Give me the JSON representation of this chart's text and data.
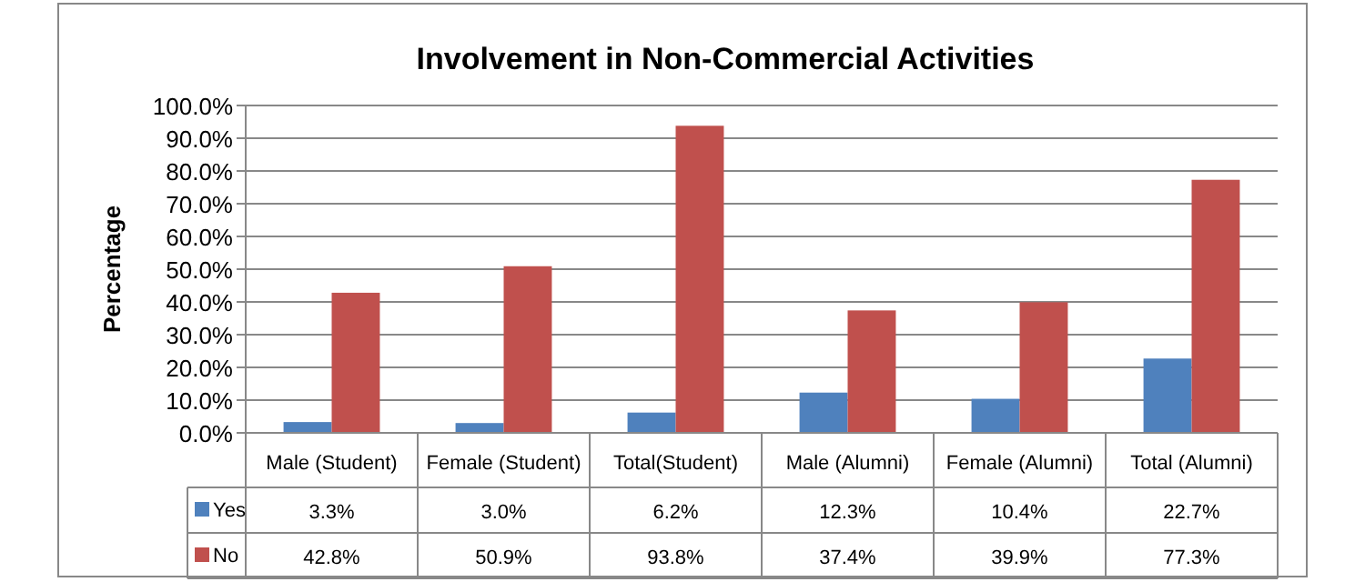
{
  "chart_data": {
    "type": "bar",
    "title": "Involvement in Non-Commercial Activities",
    "ylabel": "Percentage",
    "categories": [
      "Male (Student)",
      "Female (Student)",
      "Total(Student)",
      "Male (Alumni)",
      "Female (Alumni)",
      "Total (Alumni)"
    ],
    "series": [
      {
        "name": "Yes",
        "color": "#4f81bd",
        "values": [
          3.3,
          3.0,
          6.2,
          12.3,
          10.4,
          22.7
        ]
      },
      {
        "name": "No",
        "color": "#c0504d",
        "values": [
          42.8,
          50.9,
          93.8,
          37.4,
          39.9,
          77.3
        ]
      }
    ],
    "ylim": [
      0,
      100
    ],
    "yticks": [
      {
        "value": 0,
        "label": "0.0%"
      },
      {
        "value": 10,
        "label": "10.0%"
      },
      {
        "value": 20,
        "label": "20.0%"
      },
      {
        "value": 30,
        "label": "30.0%"
      },
      {
        "value": 40,
        "label": "40.0%"
      },
      {
        "value": 50,
        "label": "50.0%"
      },
      {
        "value": 60,
        "label": "60.0%"
      },
      {
        "value": 70,
        "label": "70.0%"
      },
      {
        "value": 80,
        "label": "80.0%"
      },
      {
        "value": 90,
        "label": "90.0%"
      },
      {
        "value": 100,
        "label": "100.0%"
      }
    ],
    "value_labels": [
      [
        "3.3%",
        "3.0%",
        "6.2%",
        "12.3%",
        "10.4%",
        "22.7%"
      ],
      [
        "42.8%",
        "50.9%",
        "93.8%",
        "37.4%",
        "39.9%",
        "77.3%"
      ]
    ],
    "grid": "y",
    "legend": "bottom"
  }
}
